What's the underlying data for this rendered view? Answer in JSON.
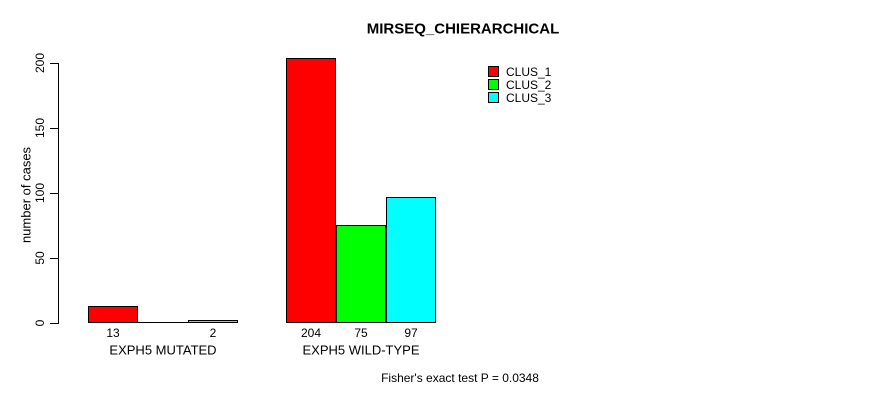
{
  "figure": {
    "background_color": "#FFFFFF",
    "text_color": "#000000"
  },
  "chart_data": {
    "type": "bar",
    "title": "MIRSEQ_CHIERARCHICAL",
    "xlabel": "",
    "ylabel": "number of cases",
    "ylim": [
      0,
      200
    ],
    "yticks": [
      0,
      50,
      100,
      150,
      200
    ],
    "categories": [
      "EXPH5 MUTATED",
      "EXPH5 WILD-TYPE"
    ],
    "series": [
      {
        "name": "CLUS_1",
        "color": "#FF0000",
        "values": [
          13,
          204
        ]
      },
      {
        "name": "CLUS_2",
        "color": "#00FF00",
        "values": [
          0,
          75
        ]
      },
      {
        "name": "CLUS_3",
        "color": "#00FFFF",
        "values": [
          2,
          97
        ]
      }
    ],
    "bar_value_labels": [
      [
        "13",
        "",
        "2"
      ],
      [
        "204",
        "75",
        "97"
      ]
    ],
    "bar_border_color": "#000000",
    "grid": false,
    "legend_position": "top-right-inside",
    "annotation": "Fisher's exact test P = 0.0348"
  }
}
